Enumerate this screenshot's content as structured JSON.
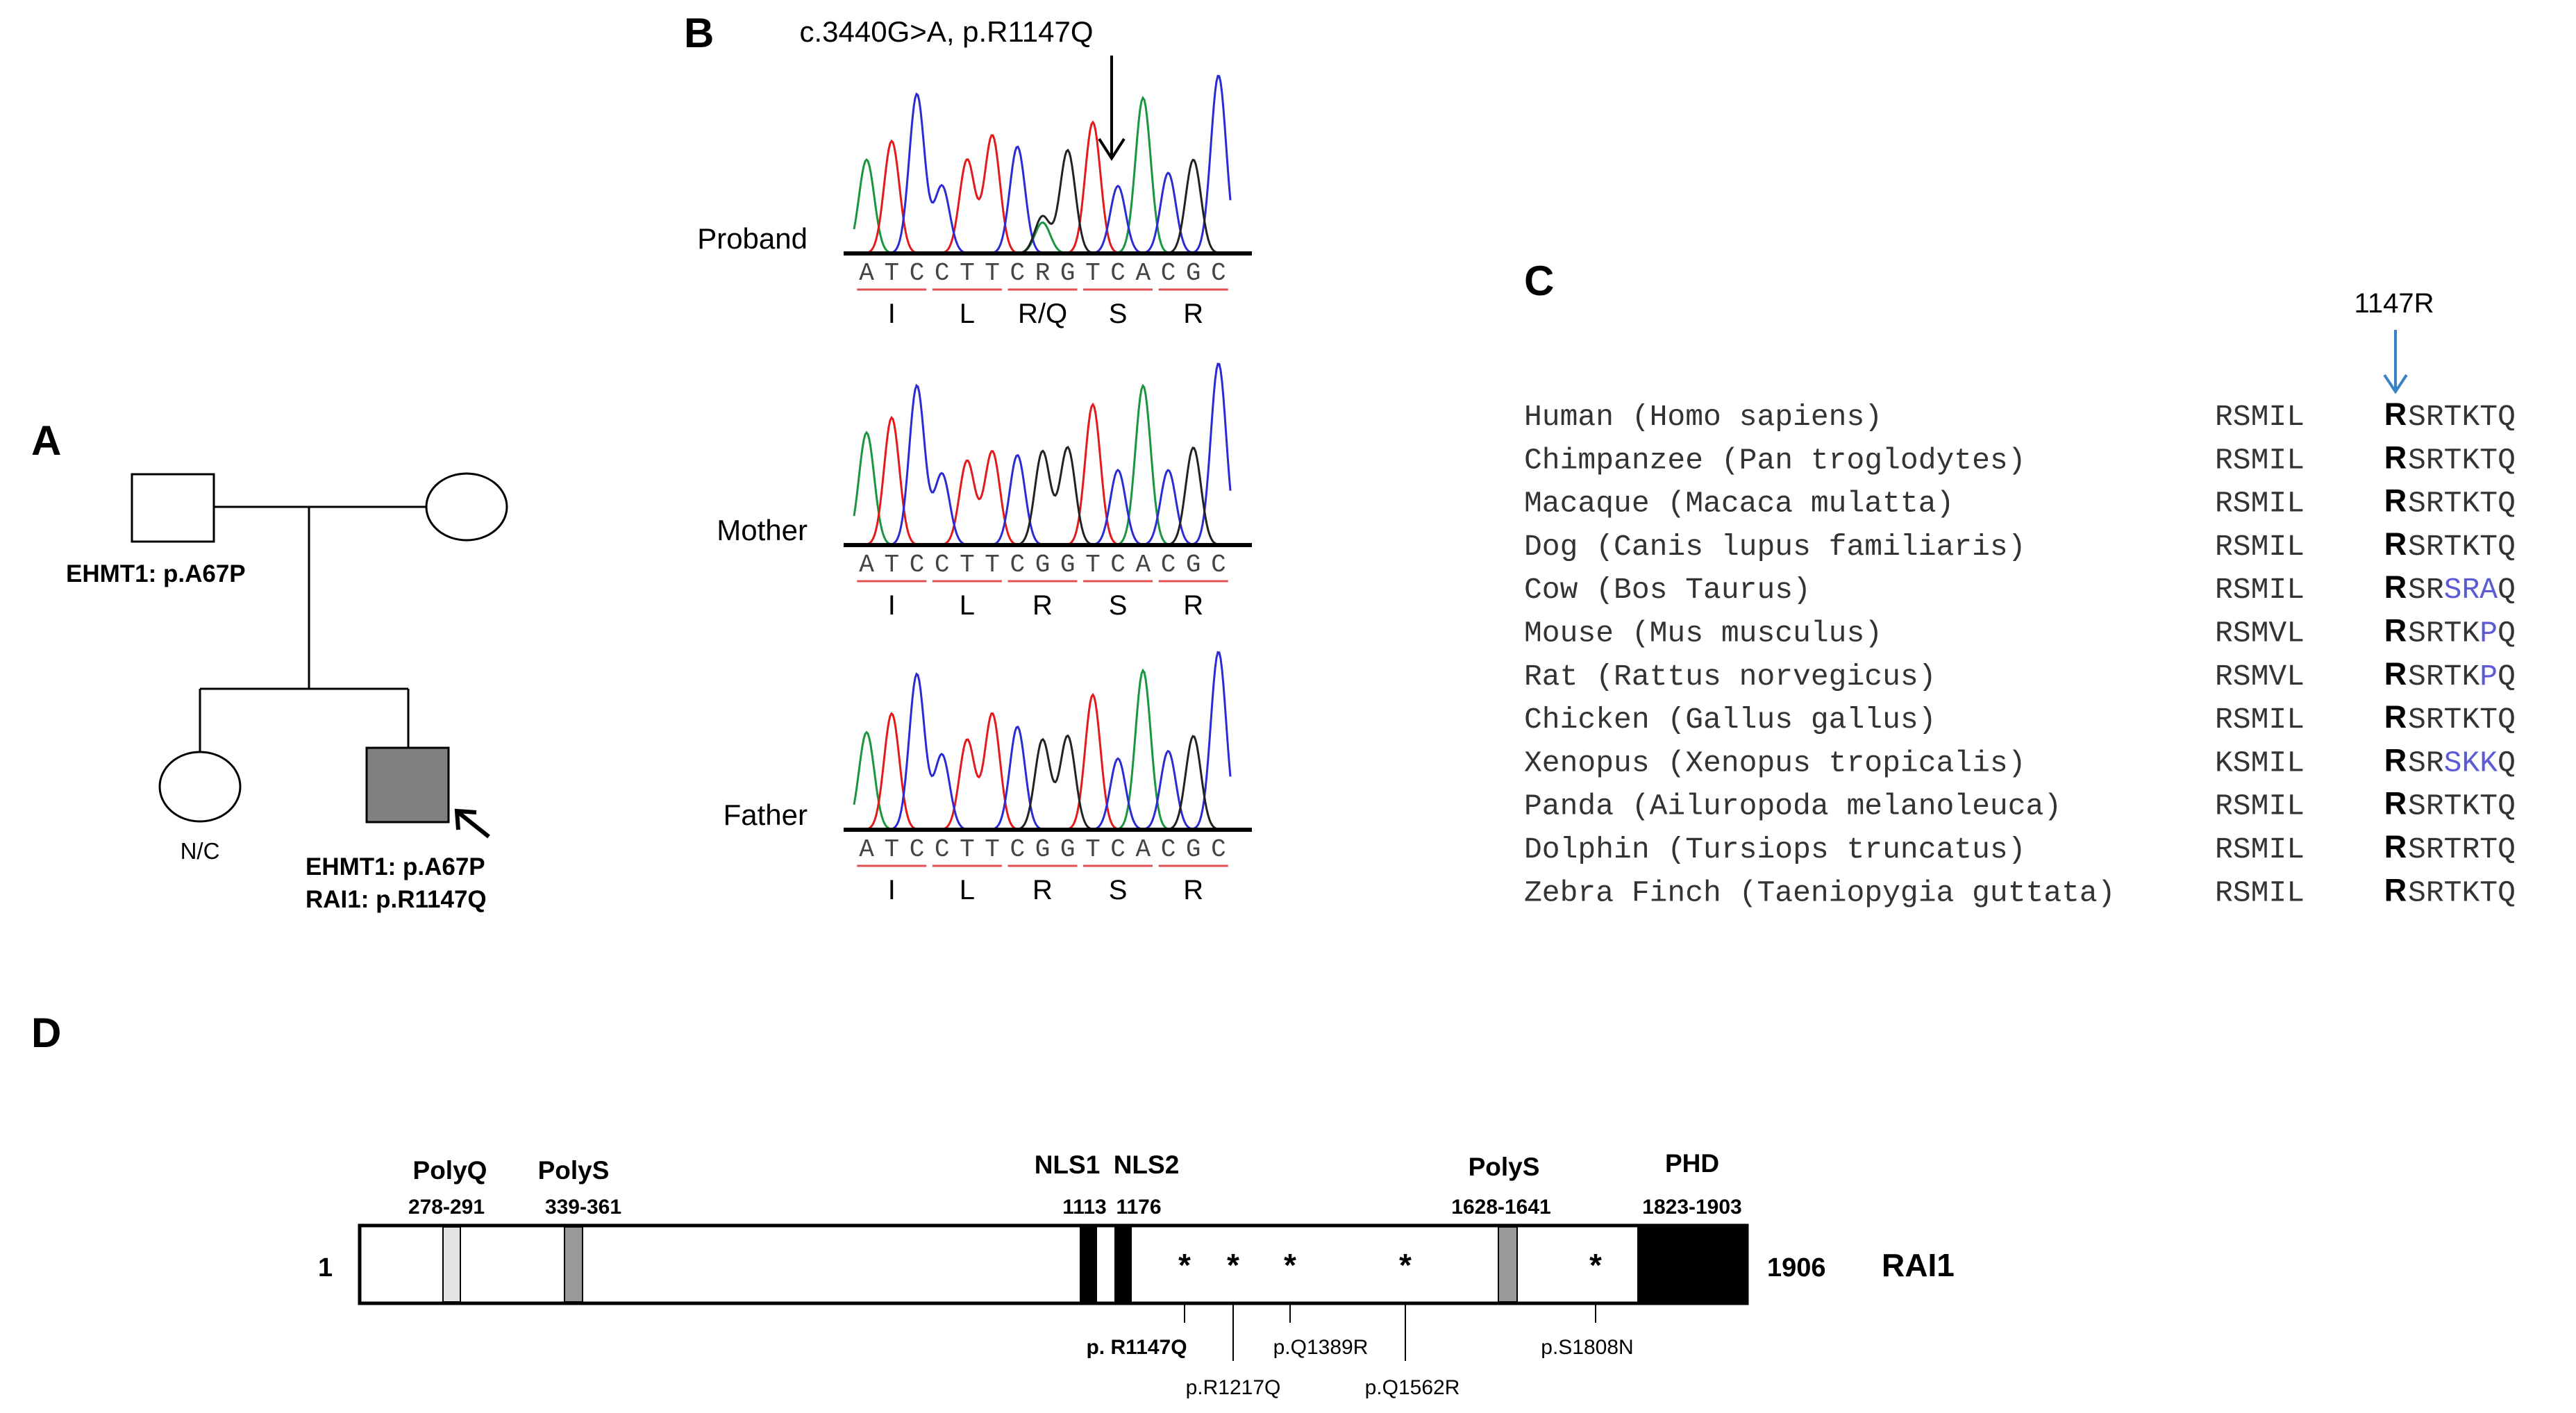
{
  "panels": {
    "A": {
      "label": "A",
      "father_variant": "EHMT1: p.A67P",
      "sibling_label": "N/C",
      "proband_variant_1": "EHMT1: p.A67P",
      "proband_variant_2": "RAI1: p.R1147Q"
    },
    "B": {
      "label": "B",
      "mutation_annotation": "c.3440G>A, p.R1147Q",
      "traces": [
        {
          "name": "Proband",
          "bases": [
            "A",
            "T",
            "C",
            "C",
            "T",
            "T",
            "C",
            "R",
            "G",
            "T",
            "C",
            "A",
            "C",
            "G",
            "C"
          ],
          "codons": [
            "I",
            "L",
            "R/Q",
            "S",
            "R"
          ]
        },
        {
          "name": "Mother",
          "bases": [
            "A",
            "T",
            "C",
            "C",
            "T",
            "T",
            "C",
            "G",
            "G",
            "T",
            "C",
            "A",
            "C",
            "G",
            "C"
          ],
          "codons": [
            "I",
            "L",
            "R",
            "S",
            "R"
          ]
        },
        {
          "name": "Father",
          "bases": [
            "A",
            "T",
            "C",
            "C",
            "T",
            "T",
            "C",
            "G",
            "G",
            "T",
            "C",
            "A",
            "C",
            "G",
            "C"
          ],
          "codons": [
            "I",
            "L",
            "R",
            "S",
            "R"
          ]
        }
      ],
      "base_colors": {
        "A": "#1a9641",
        "T": "#e31a1c",
        "C": "#2b2bd6",
        "G": "#222222"
      }
    },
    "C": {
      "label": "C",
      "position_label": "1147R",
      "arrow_color": "#3b82c4",
      "highlight_color": "#5b5bd6",
      "species": [
        {
          "name": "Human (Homo sapiens)",
          "pre": "RSMIL",
          "res": "R",
          "post": "SRTKTQ",
          "diff": []
        },
        {
          "name": "Chimpanzee (Pan troglodytes)",
          "pre": "RSMIL",
          "res": "R",
          "post": "SRTKTQ",
          "diff": []
        },
        {
          "name": "Macaque (Macaca mulatta)",
          "pre": "RSMIL",
          "res": "R",
          "post": "SRTKTQ",
          "diff": []
        },
        {
          "name": "Dog (Canis lupus familiaris)",
          "pre": "RSMIL",
          "res": "R",
          "post": "SRTKTQ",
          "diff": []
        },
        {
          "name": "Cow (Bos Taurus)",
          "pre": "RSMIL",
          "res": "R",
          "post": "SRSRAQ",
          "diff": [
            2,
            3,
            4
          ]
        },
        {
          "name": "Mouse (Mus musculus)",
          "pre": "RSMVL",
          "res": "R",
          "post": "SRTKPQ",
          "diff": [
            4
          ]
        },
        {
          "name": "Rat (Rattus norvegicus)",
          "pre": "RSMVL",
          "res": "R",
          "post": "SRTKPQ",
          "diff": [
            4
          ]
        },
        {
          "name": "Chicken (Gallus gallus)",
          "pre": "RSMIL",
          "res": "R",
          "post": "SRTKTQ",
          "diff": []
        },
        {
          "name": "Xenopus (Xenopus tropicalis)",
          "pre": "KSMIL",
          "res": "R",
          "post": "SRSKKQ",
          "diff": [
            2,
            3,
            4
          ]
        },
        {
          "name": "Panda (Ailuropoda melanoleuca)",
          "pre": "RSMIL",
          "res": "R",
          "post": "SRTKTQ",
          "diff": []
        },
        {
          "name": "Dolphin (Tursiops truncatus)",
          "pre": "RSMIL",
          "res": "R",
          "post": "SRTRTQ",
          "diff": []
        },
        {
          "name": "Zebra Finch (Taeniopygia guttata)",
          "pre": "RSMIL",
          "res": "R",
          "post": "SRTKTQ",
          "diff": []
        }
      ]
    },
    "D": {
      "label": "D",
      "protein_name": "RAI1",
      "start": "1",
      "end": "1906",
      "domains": [
        {
          "name": "PolyQ",
          "range": "278-291"
        },
        {
          "name": "PolyS",
          "range": "339-361"
        },
        {
          "name": "NLS1",
          "range": "1113"
        },
        {
          "name": "NLS2",
          "range": "1176"
        },
        {
          "name": "PolyS",
          "range": "1628-1641"
        },
        {
          "name": "PHD",
          "range": "1823-1903"
        }
      ],
      "variants": [
        "p. R1147Q",
        "p.R1217Q",
        "p.Q1389R",
        "p.Q1562R",
        "p.S1808N"
      ],
      "marker_symbol": "*"
    }
  }
}
